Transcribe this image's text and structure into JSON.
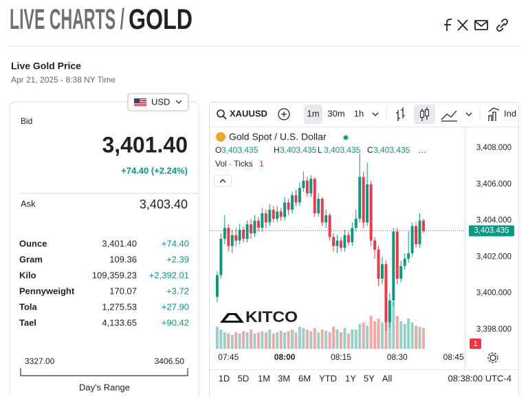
{
  "header": {
    "title_prefix": "LIVE CHARTS /",
    "title_main": "GOLD"
  },
  "price_section": {
    "title": "Live Gold Price",
    "timestamp": "Apr 21, 2025 - 8:38 NY Time",
    "currency": "USD",
    "bid_label": "Bid",
    "bid": "3,401.40",
    "change": "+74.40 (+2.24%)",
    "ask_label": "Ask",
    "ask": "3,403.40",
    "units": [
      [
        "Ounce",
        "3,401.40",
        "+74.40"
      ],
      [
        "Gram",
        "109.36",
        "+2.39"
      ],
      [
        "Kilo",
        "109,359.23",
        "+2,392.01"
      ],
      [
        "Pennyweight",
        "170.07",
        "+3.72"
      ],
      [
        "Tola",
        "1,275.53",
        "+27.90"
      ],
      [
        "Tael",
        "4,133.65",
        "+90.42"
      ]
    ],
    "range_low": "3327.00",
    "range_high": "3406.50",
    "range_label": "Day's Range"
  },
  "widget": {
    "symbol": "XAUUSD",
    "intervals": [
      "1m",
      "30m",
      "1h"
    ],
    "indicators": "Ind",
    "instrument": "Gold Spot / U.S. Dollar",
    "ohlc": [
      [
        "O",
        "3,403.435"
      ],
      [
        "H",
        "3,403.435"
      ],
      [
        "L",
        "3,403.435"
      ],
      [
        "C",
        "3,403.435"
      ]
    ],
    "ellipsis": "…",
    "volume_label": "Vol · Ticks",
    "volume_value": "1",
    "badge": "1",
    "logo": "KITCO",
    "ranges": [
      "1D",
      "5D",
      "1M",
      "3M",
      "6M",
      "YTD",
      "1Y",
      "5Y",
      "All"
    ],
    "clock": "08:38:00 UTC-4"
  },
  "chart_data": {
    "type": "candlestick",
    "x": [
      "07:42",
      "07:43",
      "07:44",
      "07:45",
      "07:46",
      "07:47",
      "07:48",
      "07:49",
      "07:50",
      "07:51",
      "07:52",
      "07:53",
      "07:54",
      "07:55",
      "07:56",
      "07:57",
      "07:58",
      "07:59",
      "08:00",
      "08:01",
      "08:02",
      "08:03",
      "08:04",
      "08:05",
      "08:06",
      "08:07",
      "08:08",
      "08:09",
      "08:10",
      "08:11",
      "08:12",
      "08:13",
      "08:14",
      "08:15",
      "08:16",
      "08:17",
      "08:18",
      "08:19",
      "08:20",
      "08:21",
      "08:22",
      "08:23",
      "08:24",
      "08:25",
      "08:26",
      "08:27",
      "08:28",
      "08:29",
      "08:30",
      "08:31",
      "08:32",
      "08:33",
      "08:34",
      "08:35",
      "08:36",
      "08:37"
    ],
    "open": [
      3399.8,
      3401.0,
      3403.0,
      3403.6,
      3402.6,
      3403.2,
      3402.9,
      3403.5,
      3403.0,
      3403.8,
      3403.3,
      3404.0,
      3403.6,
      3404.4,
      3403.9,
      3404.6,
      3404.1,
      3404.5,
      3404.2,
      3405.0,
      3404.6,
      3405.4,
      3405.0,
      3405.8,
      3406.2,
      3405.5,
      3406.3,
      3404.4,
      3405.2,
      3403.9,
      3404.3,
      3403.1,
      3402.6,
      3402.9,
      3402.5,
      3403.2,
      3402.8,
      3403.6,
      3404.1,
      3406.4,
      3403.9,
      3406.0,
      3402.9,
      3402.4,
      3400.8,
      3401.6,
      3398.4,
      3399.6,
      3403.4,
      3400.8,
      3401.5,
      3401.9,
      3402.2,
      3403.7,
      3402.7,
      3404.0
    ],
    "high": [
      3401.2,
      3403.3,
      3404.3,
      3403.8,
      3403.5,
      3403.6,
      3403.8,
      3403.7,
      3404.0,
      3404.1,
      3404.3,
      3404.2,
      3404.7,
      3404.6,
      3404.9,
      3404.8,
      3404.8,
      3404.7,
      3405.3,
      3405.2,
      3405.6,
      3405.7,
      3406.1,
      3406.7,
      3406.4,
      3406.5,
      3406.4,
      3405.5,
      3405.3,
      3404.6,
      3404.4,
      3403.3,
      3403.2,
      3403.1,
      3403.5,
      3403.4,
      3403.9,
      3404.6,
      3407.7,
      3406.7,
      3407.2,
      3406.2,
      3403.1,
      3402.6,
      3402.0,
      3401.8,
      3400.0,
      3403.6,
      3403.6,
      3401.8,
      3402.2,
      3403.4,
      3403.9,
      3403.9,
      3404.4,
      3404.1
    ],
    "low": [
      3399.5,
      3400.8,
      3402.7,
      3402.3,
      3402.2,
      3402.6,
      3402.7,
      3402.8,
      3402.8,
      3403.0,
      3403.1,
      3403.4,
      3403.4,
      3403.6,
      3403.7,
      3403.9,
      3403.9,
      3404.0,
      3404.0,
      3404.3,
      3404.4,
      3404.8,
      3404.8,
      3405.6,
      3405.3,
      3405.3,
      3404.2,
      3404.2,
      3403.7,
      3403.6,
      3402.9,
      3402.3,
      3402.2,
      3402.3,
      3402.3,
      3402.6,
      3402.6,
      3403.4,
      3403.9,
      3403.6,
      3403.7,
      3402.6,
      3401.9,
      3400.4,
      3400.5,
      3397.9,
      3398.1,
      3399.3,
      3400.5,
      3400.6,
      3401.3,
      3401.7,
      3402.0,
      3402.5,
      3402.5,
      3403.3
    ],
    "close": [
      3401.0,
      3403.0,
      3403.6,
      3402.6,
      3403.2,
      3402.9,
      3403.5,
      3403.0,
      3403.8,
      3403.3,
      3404.0,
      3403.6,
      3404.4,
      3403.9,
      3404.6,
      3404.1,
      3404.5,
      3404.2,
      3405.0,
      3404.6,
      3405.4,
      3405.0,
      3405.8,
      3406.2,
      3405.5,
      3406.3,
      3404.4,
      3405.2,
      3403.9,
      3404.3,
      3403.1,
      3402.6,
      3402.9,
      3402.5,
      3403.2,
      3402.8,
      3403.6,
      3404.1,
      3406.4,
      3403.9,
      3406.0,
      3402.9,
      3402.4,
      3400.8,
      3401.6,
      3398.4,
      3399.6,
      3403.4,
      3400.8,
      3401.5,
      3401.9,
      3402.2,
      3403.7,
      3402.7,
      3404.0,
      3403.435
    ],
    "volume": [
      40,
      35,
      30,
      28,
      25,
      30,
      28,
      32,
      30,
      35,
      28,
      30,
      32,
      30,
      35,
      28,
      30,
      33,
      30,
      32,
      35,
      30,
      40,
      38,
      35,
      32,
      38,
      30,
      35,
      33,
      30,
      40,
      35,
      30,
      38,
      28,
      35,
      35,
      45,
      48,
      42,
      60,
      50,
      55,
      48,
      95,
      70,
      85,
      60,
      50,
      45,
      55,
      48,
      42,
      40,
      38
    ],
    "up_color": "#089981",
    "down_color": "#f23645",
    "volume_up_color": "#93d1c9",
    "volume_down_color": "#f5a5a5",
    "ylim": [
      3396.9,
      3408.76
    ],
    "yticks": [
      {
        "value": 3398,
        "label": "3,398.000"
      },
      {
        "value": 3400,
        "label": "3,400.000"
      },
      {
        "value": 3402,
        "label": "3,402.000"
      },
      {
        "value": 3404,
        "label": "3,404.000"
      },
      {
        "value": 3406,
        "label": "3,406.000"
      },
      {
        "value": 3408,
        "label": "3,408.000"
      }
    ],
    "xlim": [
      "07:40",
      "08:48"
    ],
    "xticks": [
      "07:45",
      "08:00",
      "08:15",
      "08:30",
      "08:45"
    ],
    "price_line": {
      "value": 3403.435,
      "label": "3,403.435"
    }
  }
}
